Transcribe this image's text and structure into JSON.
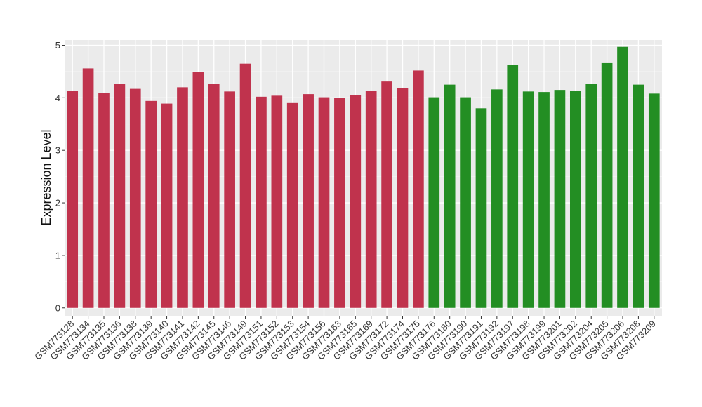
{
  "chart_data": {
    "type": "bar",
    "ylabel": "Expression Level",
    "xlabel": "",
    "ylim": [
      -0.15,
      5.1
    ],
    "yticks": [
      0,
      1,
      2,
      3,
      4,
      5
    ],
    "grid": true,
    "background": "#ebebeb",
    "categories": [
      "GSM773128",
      "GSM773134",
      "GSM773135",
      "GSM773136",
      "GSM773138",
      "GSM773139",
      "GSM773140",
      "GSM773141",
      "GSM773142",
      "GSM773145",
      "GSM773146",
      "GSM773149",
      "GSM773151",
      "GSM773152",
      "GSM773153",
      "GSM773154",
      "GSM773156",
      "GSM773163",
      "GSM773165",
      "GSM773169",
      "GSM773172",
      "GSM773174",
      "GSM773175",
      "GSM773176",
      "GSM773180",
      "GSM773190",
      "GSM773191",
      "GSM773192",
      "GSM773197",
      "GSM773198",
      "GSM773199",
      "GSM773201",
      "GSM773202",
      "GSM773204",
      "GSM773205",
      "GSM773206",
      "GSM773208",
      "GSM773209"
    ],
    "values": [
      4.13,
      4.56,
      4.09,
      4.26,
      4.17,
      3.94,
      3.89,
      4.2,
      4.49,
      4.26,
      4.12,
      4.65,
      4.02,
      4.04,
      3.9,
      4.07,
      4.01,
      4.0,
      4.05,
      4.13,
      4.31,
      4.19,
      4.52,
      4.01,
      4.25,
      4.01,
      3.8,
      4.16,
      4.63,
      4.12,
      4.11,
      4.15,
      4.13,
      4.26,
      4.66,
      4.97,
      4.25,
      4.08
    ],
    "colors": [
      "#c0334d",
      "#c0334d",
      "#c0334d",
      "#c0334d",
      "#c0334d",
      "#c0334d",
      "#c0334d",
      "#c0334d",
      "#c0334d",
      "#c0334d",
      "#c0334d",
      "#c0334d",
      "#c0334d",
      "#c0334d",
      "#c0334d",
      "#c0334d",
      "#c0334d",
      "#c0334d",
      "#c0334d",
      "#c0334d",
      "#c0334d",
      "#c0334d",
      "#c0334d",
      "#238e23",
      "#238e23",
      "#238e23",
      "#238e23",
      "#238e23",
      "#238e23",
      "#238e23",
      "#238e23",
      "#238e23",
      "#238e23",
      "#238e23",
      "#238e23",
      "#238e23",
      "#238e23",
      "#238e23"
    ]
  }
}
